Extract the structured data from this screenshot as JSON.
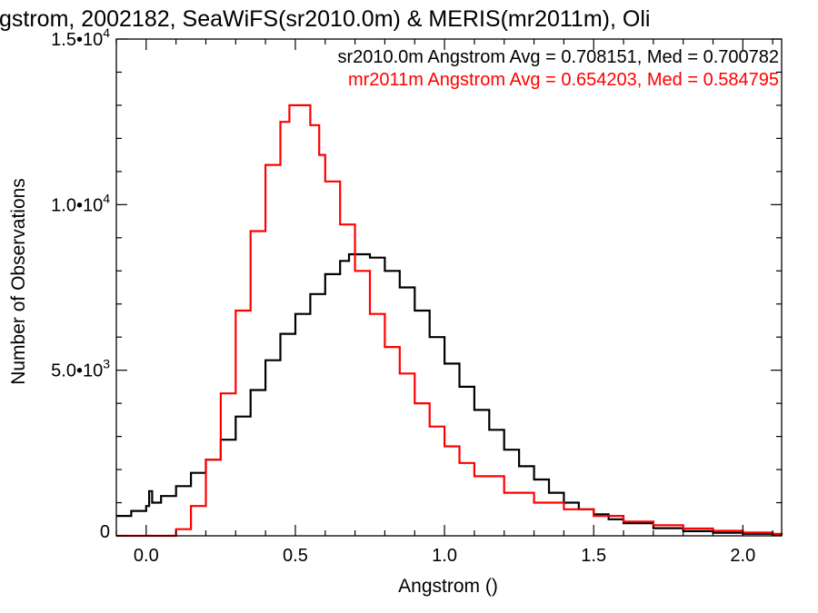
{
  "chart_data": {
    "type": "line",
    "title": "gstrom, 2002182, SeaWiFS(sr2010.0m) & MERIS(mr2011m), Oli",
    "xlabel": "Angstrom ()",
    "ylabel": "Number of Observations",
    "xlim": [
      -0.1,
      2.13
    ],
    "ylim": [
      0,
      15000
    ],
    "x_ticks": [
      0.0,
      0.5,
      1.0,
      1.5,
      2.0
    ],
    "x_tick_labels": [
      "0.0",
      "0.5",
      "1.0",
      "1.5",
      "2.0"
    ],
    "y_ticks": [
      0,
      5000,
      10000,
      15000
    ],
    "y_tick_labels": [
      {
        "mantissa": "0",
        "exp": ""
      },
      {
        "mantissa": "5.0•10",
        "exp": "3"
      },
      {
        "mantissa": "1.0•10",
        "exp": "4"
      },
      {
        "mantissa": "1.5•10",
        "exp": "4"
      }
    ],
    "grid": false,
    "legend_position": "top-right",
    "series": [
      {
        "name": "sr2010.0m Angstrom Avg = 0.708151, Med = 0.700782",
        "color": "#000000",
        "x": [
          -0.1,
          -0.05,
          0.0,
          0.01,
          0.02,
          0.03,
          0.05,
          0.1,
          0.15,
          0.2,
          0.25,
          0.3,
          0.35,
          0.4,
          0.45,
          0.5,
          0.55,
          0.6,
          0.65,
          0.68,
          0.72,
          0.75,
          0.8,
          0.85,
          0.9,
          0.95,
          1.0,
          1.05,
          1.1,
          1.15,
          1.2,
          1.25,
          1.3,
          1.35,
          1.4,
          1.45,
          1.5,
          1.55,
          1.6,
          1.7,
          1.8,
          1.9,
          2.0,
          2.1,
          2.13
        ],
        "y": [
          600,
          750,
          900,
          1350,
          1000,
          1000,
          1200,
          1500,
          1900,
          2300,
          2900,
          3600,
          4400,
          5300,
          6100,
          6700,
          7300,
          7900,
          8300,
          8500,
          8500,
          8400,
          8000,
          7500,
          6800,
          6000,
          5200,
          4500,
          3800,
          3200,
          2600,
          2100,
          1700,
          1300,
          1000,
          800,
          650,
          500,
          380,
          230,
          140,
          90,
          60,
          40,
          20
        ]
      },
      {
        "name": "mr2011m Angstrom Avg = 0.654203, Med = 0.584795",
        "color": "#ff0000",
        "x": [
          -0.1,
          0.07,
          0.1,
          0.15,
          0.2,
          0.25,
          0.3,
          0.35,
          0.4,
          0.45,
          0.48,
          0.5,
          0.52,
          0.55,
          0.58,
          0.6,
          0.65,
          0.7,
          0.75,
          0.8,
          0.85,
          0.9,
          0.95,
          1.0,
          1.05,
          1.1,
          1.2,
          1.3,
          1.4,
          1.5,
          1.6,
          1.7,
          1.8,
          1.9,
          2.0,
          2.1,
          2.13
        ],
        "y": [
          0,
          0,
          200,
          900,
          2300,
          4300,
          6800,
          9200,
          11200,
          12500,
          13000,
          13000,
          13000,
          12400,
          11500,
          10700,
          9400,
          8000,
          6700,
          5700,
          4900,
          4000,
          3300,
          2700,
          2200,
          1800,
          1300,
          1000,
          800,
          600,
          430,
          320,
          220,
          150,
          100,
          60,
          40
        ]
      }
    ]
  }
}
